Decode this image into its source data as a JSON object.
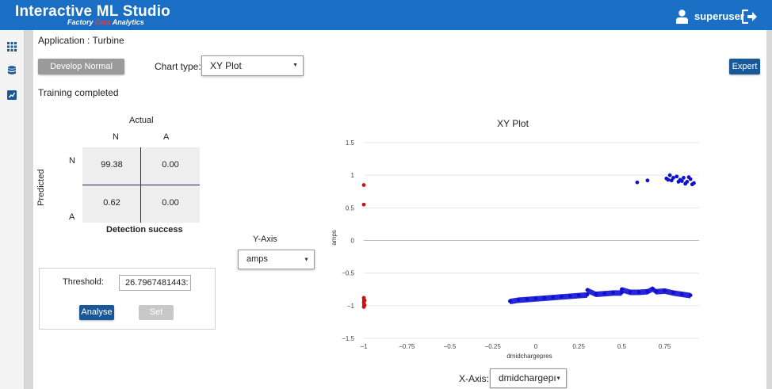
{
  "header": {
    "title": "Interactive ML Studio",
    "subtitle_pre": "Factory",
    "subtitle_hl": "Data",
    "subtitle_post": "Analytics",
    "user": "superuser"
  },
  "sidebar": {
    "icons": [
      "grid-icon",
      "database-icon",
      "chart-icon"
    ]
  },
  "app_label": "Application : Turbine",
  "toolbar": {
    "develop_label": "Develop Normal Model",
    "chart_type_label": "Chart type:",
    "chart_type_value": "XY Plot",
    "expert_label": "Expert"
  },
  "status": "Training completed",
  "confusion": {
    "actual_label": "Actual",
    "predicted_label": "Predicted",
    "col_n": "N",
    "col_a": "A",
    "row_n": "N",
    "row_a": "A",
    "nn": "99.38",
    "na": "0.00",
    "an": "0.62",
    "aa": "0.00",
    "footer": "Detection success"
  },
  "threshold": {
    "label": "Threshold:",
    "value": "26.7967481443:",
    "analyse_label": "Analyse",
    "set_label": "Set"
  },
  "y_axis_selector": {
    "label": "Y-Axis",
    "value": "amps"
  },
  "x_axis_selector": {
    "label": "X-Axis:",
    "value": "dmidchargepı"
  },
  "colors": {
    "header": "#1a6fc4",
    "normal_points": "#1010d0",
    "anomaly_points": "#d01010"
  },
  "chart_data": {
    "type": "scatter",
    "title": "XY Plot",
    "xlabel": "dmidchargepres",
    "ylabel": "amps",
    "xlim": [
      -1,
      0.95
    ],
    "ylim": [
      -1.5,
      1.5
    ],
    "xticks": [
      "−1",
      "−0.75",
      "−0.5",
      "−0.25",
      "0",
      "0.25",
      "0.5",
      "0.75"
    ],
    "yticks": [
      "−1.5",
      "−1",
      "−0.5",
      "0",
      "0.5",
      "1",
      "1.5"
    ],
    "grid": true,
    "series": [
      {
        "color": "#1010d0",
        "points": [
          [
            0.59,
            0.89
          ],
          [
            0.65,
            0.92
          ],
          [
            0.76,
            0.95
          ],
          [
            0.78,
            1.0
          ],
          [
            0.8,
            0.96
          ],
          [
            0.82,
            0.98
          ],
          [
            0.84,
            0.93
          ],
          [
            0.86,
            0.96
          ],
          [
            0.88,
            0.9
          ],
          [
            0.9,
            0.94
          ],
          [
            0.91,
            0.86
          ],
          [
            0.92,
            0.88
          ],
          [
            0.79,
            0.92
          ],
          [
            0.83,
            0.9
          ],
          [
            0.87,
            0.87
          ],
          [
            0.89,
            0.97
          ],
          [
            0.85,
            0.91
          ],
          [
            0.77,
            0.93
          ],
          [
            -0.15,
            -0.93
          ],
          [
            -0.1,
            -0.91
          ],
          [
            -0.05,
            -0.9
          ],
          [
            0,
            -0.89
          ],
          [
            0.05,
            -0.88
          ],
          [
            0.1,
            -0.87
          ],
          [
            0.15,
            -0.86
          ],
          [
            0.2,
            -0.85
          ],
          [
            0.25,
            -0.84
          ],
          [
            0.3,
            -0.83
          ],
          [
            0.35,
            -0.82
          ],
          [
            0.4,
            -0.81
          ],
          [
            0.45,
            -0.8
          ],
          [
            0.5,
            -0.8
          ],
          [
            0.55,
            -0.79
          ],
          [
            0.6,
            -0.79
          ],
          [
            0.65,
            -0.78
          ],
          [
            0.7,
            -0.78
          ],
          [
            0.75,
            -0.77
          ],
          [
            0.8,
            -0.8
          ],
          [
            0.85,
            -0.82
          ],
          [
            0.9,
            -0.84
          ],
          [
            0.3,
            -0.76
          ],
          [
            0.5,
            -0.75
          ],
          [
            0.68,
            -0.74
          ]
        ]
      },
      {
        "color": "#d01010",
        "points": [
          [
            -1,
            0.85
          ],
          [
            -1,
            0.55
          ],
          [
            -1,
            -0.88
          ],
          [
            -0.995,
            -0.92
          ],
          [
            -1,
            -0.95
          ],
          [
            -0.995,
            -0.99
          ],
          [
            -1,
            -1.02
          ]
        ]
      }
    ]
  }
}
